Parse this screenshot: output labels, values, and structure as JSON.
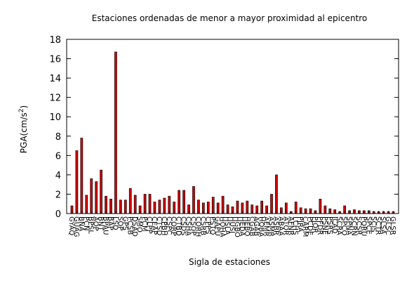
{
  "chart_data": {
    "type": "bar",
    "title": "Estaciones ordenadas de menor a mayor proximidad al epicentro",
    "xlabel": "Sigla de estaciones",
    "ylabel_prefix": "PGA(cm/s",
    "ylabel_exponent": "2",
    "ylabel_suffix": ")",
    "ylim": [
      0,
      18
    ],
    "yticks": [
      0,
      2,
      4,
      6,
      8,
      10,
      12,
      14,
      16,
      18
    ],
    "grid": false,
    "legend": "none",
    "bar_color": "#cc0000",
    "bar_edge_color": "#000000",
    "categories": [
      "GYAQ",
      "GUAG",
      "BNA",
      "PCN",
      "BPSL",
      "AOP",
      "BNT",
      "BPAU",
      "BAP",
      "LSD",
      "SOP",
      "GPS",
      "PCSB",
      "DSAD",
      "SMO",
      "PCM",
      "CLPP",
      "CEAP",
      "CTSD",
      "CPBH",
      "CSPC",
      "CORP",
      "CTBD",
      "CSDS",
      "CSHA",
      "CSOP",
      "CORH",
      "CSRB",
      "CPPS",
      "PSTQ",
      "GAPU",
      "HOHA",
      "HSLA",
      "HUSJ",
      "HGBO",
      "HEDA",
      "HEBO",
      "CGAB",
      "AGAB",
      "HQBA",
      "AEMR",
      "ASMR",
      "ASBR",
      "ABAA",
      "ATOR",
      "AFNR",
      "LCHS",
      "PJRA",
      "CARM",
      "PCDE",
      "PJOR",
      "PFDR",
      "PSNE",
      "PSRS",
      "ICAD",
      "SCRA",
      "SPCO",
      "SPNA",
      "SCRN",
      "SCSR",
      "PQRU",
      "SPCE",
      "SCIS",
      "SCTR",
      "SLSA",
      "GLSC",
      "GLSR"
    ],
    "values": [
      0.8,
      6.5,
      7.8,
      1.9,
      3.6,
      3.3,
      4.5,
      1.8,
      1.5,
      16.7,
      1.4,
      1.4,
      2.6,
      1.9,
      0.8,
      2.0,
      2.0,
      1.2,
      1.4,
      1.6,
      1.8,
      1.2,
      2.4,
      2.4,
      0.9,
      2.8,
      1.4,
      1.1,
      1.2,
      1.7,
      1.1,
      1.8,
      0.9,
      0.7,
      1.3,
      1.1,
      1.3,
      0.9,
      0.8,
      1.3,
      0.8,
      2.0,
      4.0,
      0.6,
      1.1,
      0.2,
      1.2,
      0.6,
      0.5,
      0.5,
      0.3,
      1.5,
      0.8,
      0.5,
      0.4,
      0.2,
      0.8,
      0.3,
      0.4,
      0.3,
      0.3,
      0.3,
      0.2,
      0.2,
      0.2,
      0.2,
      0.2
    ]
  }
}
